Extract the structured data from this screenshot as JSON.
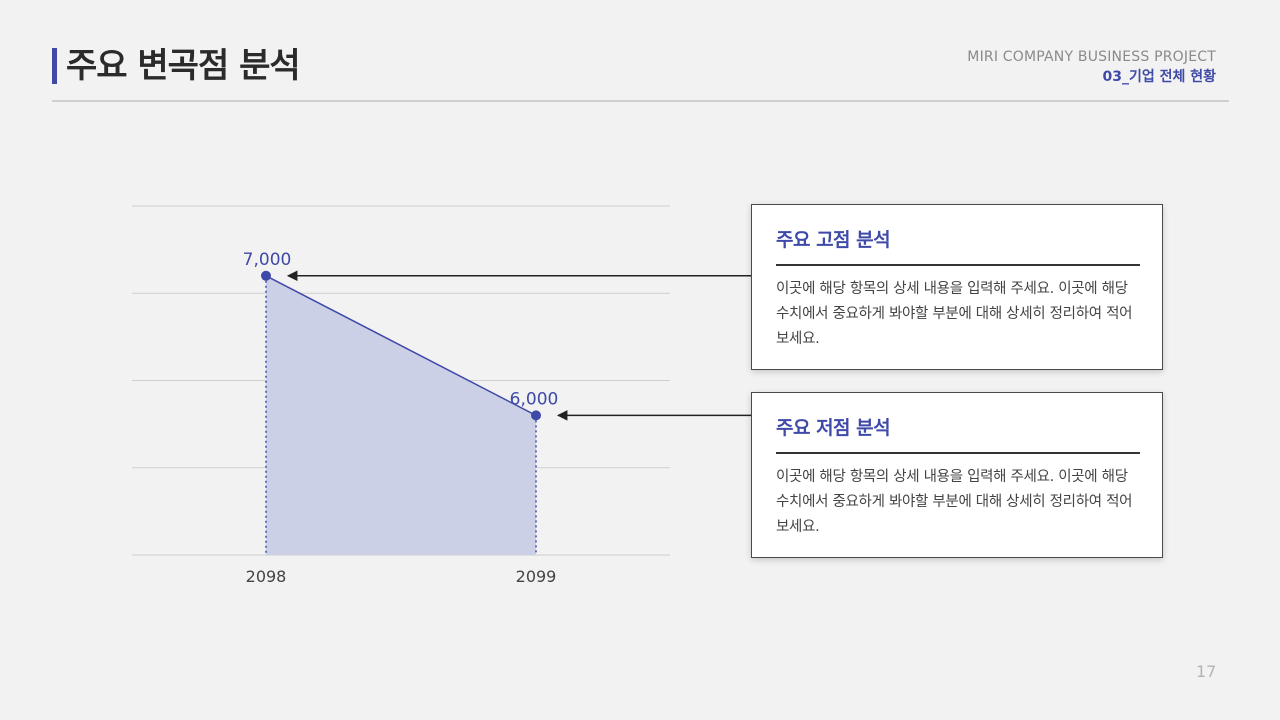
{
  "header": {
    "title": "주요 변곡점 분석",
    "project_name": "MIRI COMPANY BUSINESS PROJECT",
    "section": "03_기업 전체 현황"
  },
  "chart_data": {
    "type": "area",
    "categories": [
      "2098",
      "2099"
    ],
    "series": [
      {
        "values": [
          7000,
          6000
        ]
      }
    ],
    "data_labels": [
      "7,000",
      "6,000"
    ],
    "ylim": [
      5000,
      7500
    ],
    "grid": true,
    "colors": {
      "line": "#3f4aa8",
      "fill": "#ccd0e6",
      "grid": "#cfcfcf"
    }
  },
  "cards": [
    {
      "title": "주요 고점 분석",
      "body": "이곳에 해당 항목의 상세 내용을 입력해 주세요. 이곳에 해당 수치에서 중요하게 봐야할 부분에 대해 상세히 정리하여 적어보세요."
    },
    {
      "title": "주요 저점 분석",
      "body": "이곳에 해당 항목의 상세 내용을 입력해 주세요. 이곳에 해당 수치에서 중요하게 봐야할 부분에 대해 상세히 정리하여 적어보세요."
    }
  ],
  "page_number": "17"
}
